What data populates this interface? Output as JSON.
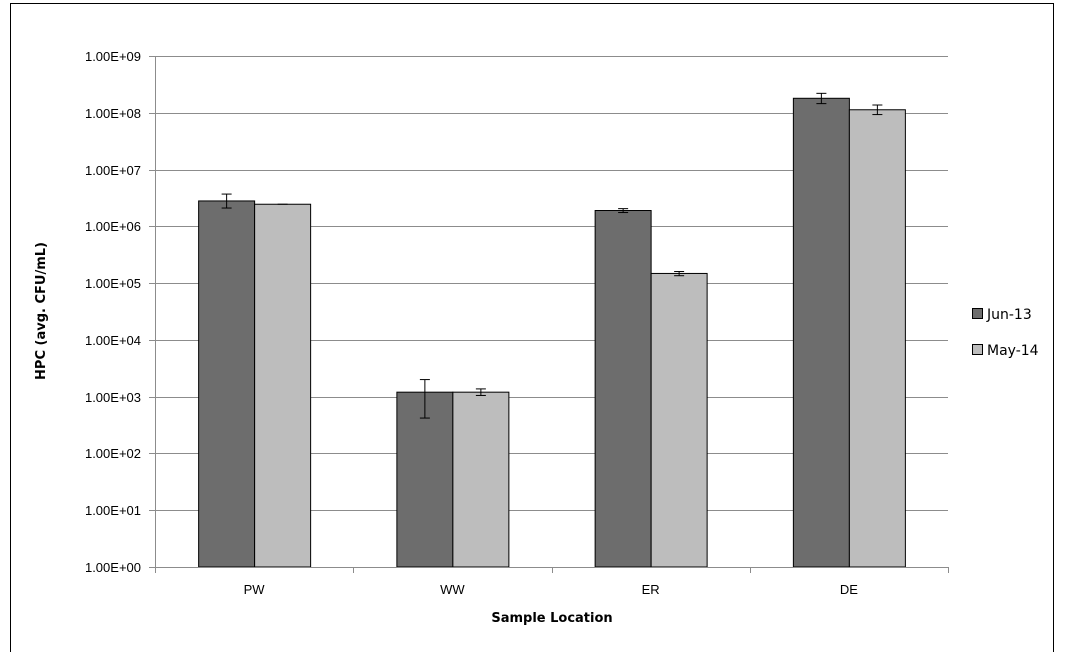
{
  "chart_data": {
    "type": "bar",
    "title": "",
    "xlabel": "Sample Location",
    "ylabel": "HPC (avg. CFU/mL)",
    "yscale": "log",
    "ylim": [
      1,
      1000000000
    ],
    "yticks": [
      {
        "value": 1,
        "label": "1.00E+00"
      },
      {
        "value": 10,
        "label": "1.00E+01"
      },
      {
        "value": 100,
        "label": "1.00E+02"
      },
      {
        "value": 1000,
        "label": "1.00E+03"
      },
      {
        "value": 10000,
        "label": "1.00E+04"
      },
      {
        "value": 100000,
        "label": "1.00E+05"
      },
      {
        "value": 1000000,
        "label": "1.00E+06"
      },
      {
        "value": 10000000,
        "label": "1.00E+07"
      },
      {
        "value": 100000000,
        "label": "1.00E+08"
      },
      {
        "value": 1000000000,
        "label": "1.00E+09"
      }
    ],
    "grid": "horizontal",
    "legend_position": "right",
    "categories": [
      "PW",
      "WW",
      "ER",
      "DE"
    ],
    "series": [
      {
        "name": "Jun-13",
        "color": "#6d6d6d",
        "values": [
          2800000,
          1200,
          1900000,
          180000000
        ],
        "error_low": [
          2100000,
          420,
          1750000,
          145000000
        ],
        "error_high": [
          3700000,
          2000,
          2050000,
          220000000
        ]
      },
      {
        "name": "May-14",
        "color": "#bdbdbd",
        "values": [
          2450000,
          1200,
          148000,
          113000000
        ],
        "error_low": [
          2450000,
          1050,
          135000,
          93000000
        ],
        "error_high": [
          2450000,
          1370,
          160000,
          137000000
        ]
      }
    ]
  }
}
